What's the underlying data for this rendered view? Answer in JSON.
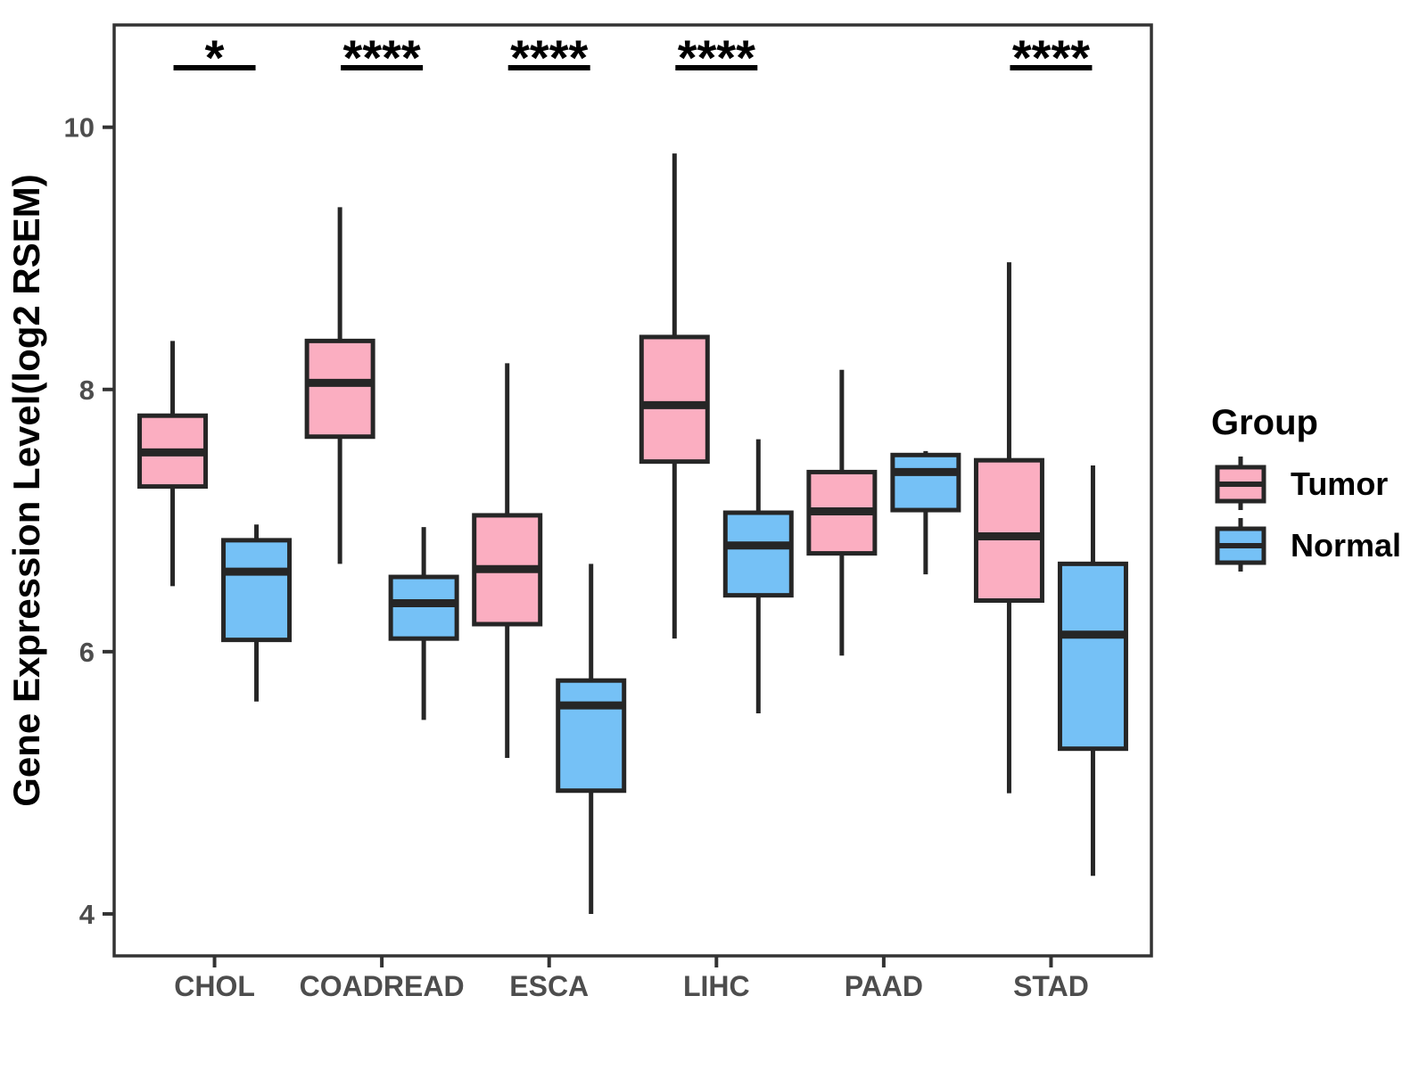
{
  "chart_data": {
    "type": "grouped_boxplot",
    "title": "",
    "ylabel": "Gene Expression Level(log2 RSEM)",
    "xlabel": "",
    "categories": [
      "CHOL",
      "COADREAD",
      "ESCA",
      "LIHC",
      "PAAD",
      "STAD"
    ],
    "y_ticks": [
      4,
      6,
      8,
      10
    ],
    "ylim": [
      3.68,
      10.78
    ],
    "grid": "off",
    "legend_position": "right",
    "series": [
      {
        "name": "Tumor",
        "color": "#FBAEC1",
        "boxes": [
          {
            "category": "CHOL",
            "whisker_low": 6.5,
            "q1": 7.26,
            "median": 7.52,
            "q3": 7.8,
            "whisker_high": 8.37
          },
          {
            "category": "COADREAD",
            "whisker_low": 6.67,
            "q1": 7.64,
            "median": 8.05,
            "q3": 8.37,
            "whisker_high": 9.39
          },
          {
            "category": "ESCA",
            "whisker_low": 5.19,
            "q1": 6.21,
            "median": 6.63,
            "q3": 7.04,
            "whisker_high": 8.2
          },
          {
            "category": "LIHC",
            "whisker_low": 6.1,
            "q1": 7.45,
            "median": 7.88,
            "q3": 8.4,
            "whisker_high": 9.8
          },
          {
            "category": "PAAD",
            "whisker_low": 5.97,
            "q1": 6.75,
            "median": 7.07,
            "q3": 7.37,
            "whisker_high": 8.15
          },
          {
            "category": "STAD",
            "whisker_low": 4.92,
            "q1": 6.39,
            "median": 6.88,
            "q3": 7.46,
            "whisker_high": 8.97
          }
        ]
      },
      {
        "name": "Normal",
        "color": "#75C1F6",
        "boxes": [
          {
            "category": "CHOL",
            "whisker_low": 5.62,
            "q1": 6.09,
            "median": 6.61,
            "q3": 6.85,
            "whisker_high": 6.97
          },
          {
            "category": "COADREAD",
            "whisker_low": 5.48,
            "q1": 6.1,
            "median": 6.37,
            "q3": 6.57,
            "whisker_high": 6.95
          },
          {
            "category": "ESCA",
            "whisker_low": 4.0,
            "q1": 4.94,
            "median": 5.59,
            "q3": 5.78,
            "whisker_high": 6.67
          },
          {
            "category": "LIHC",
            "whisker_low": 5.53,
            "q1": 6.43,
            "median": 6.81,
            "q3": 7.06,
            "whisker_high": 7.62
          },
          {
            "category": "PAAD",
            "whisker_low": 6.59,
            "q1": 7.08,
            "median": 7.37,
            "q3": 7.5,
            "whisker_high": 7.53
          },
          {
            "category": "STAD",
            "whisker_low": 4.29,
            "q1": 5.26,
            "median": 6.13,
            "q3": 6.67,
            "whisker_high": 7.42
          }
        ]
      }
    ],
    "significance": [
      {
        "category": "CHOL",
        "label": "*"
      },
      {
        "category": "COADREAD",
        "label": "****"
      },
      {
        "category": "ESCA",
        "label": "****"
      },
      {
        "category": "LIHC",
        "label": "****"
      },
      {
        "category": "STAD",
        "label": "****"
      }
    ],
    "legend": {
      "title": "Group",
      "entries": [
        {
          "label": "Tumor",
          "color": "#FBAEC1"
        },
        {
          "label": "Normal",
          "color": "#75C1F6"
        }
      ]
    },
    "style_colors": {
      "box_stroke": "#262626",
      "panel_border": "#333333",
      "tick_text": "#4d4d4d",
      "background": "#ffffff"
    }
  }
}
